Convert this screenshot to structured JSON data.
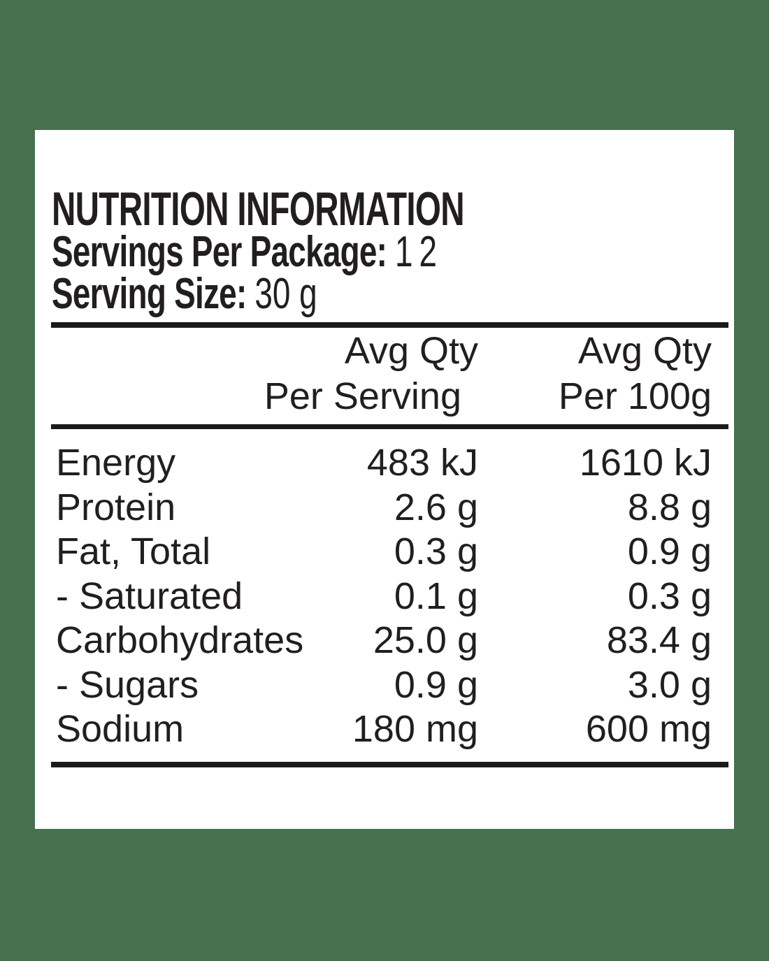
{
  "page": {
    "background_color": "#47714E",
    "card_color": "#FFFFFF",
    "text_color": "#221E1F",
    "rule_color": "#1C191A"
  },
  "label": {
    "title": "NUTRITION INFORMATION",
    "servings_per_package": {
      "label": "Servings Per Package:",
      "value": "12"
    },
    "serving_size": {
      "label": "Serving Size:",
      "value": "30 g"
    },
    "columns": {
      "per_serving": {
        "line1": "Avg Qty",
        "line2": "Per Serving"
      },
      "per_100g": {
        "line1": "Avg Qty",
        "line2": "Per 100g"
      }
    },
    "rows": [
      {
        "nutrient": "Energy",
        "per_serving": "483 kJ",
        "per_100g": "1610 kJ"
      },
      {
        "nutrient": "Protein",
        "per_serving": "2.6 g",
        "per_100g": "8.8 g"
      },
      {
        "nutrient": "Fat, Total",
        "per_serving": "0.3 g",
        "per_100g": "0.9 g"
      },
      {
        "nutrient": "- Saturated",
        "per_serving": "0.1 g",
        "per_100g": "0.3 g"
      },
      {
        "nutrient": "Carbohydrates",
        "per_serving": "25.0 g",
        "per_100g": "83.4 g"
      },
      {
        "nutrient": "- Sugars",
        "per_serving": "0.9 g",
        "per_100g": "3.0 g"
      },
      {
        "nutrient": "Sodium",
        "per_serving": "180 mg",
        "per_100g": "600 mg"
      }
    ]
  }
}
